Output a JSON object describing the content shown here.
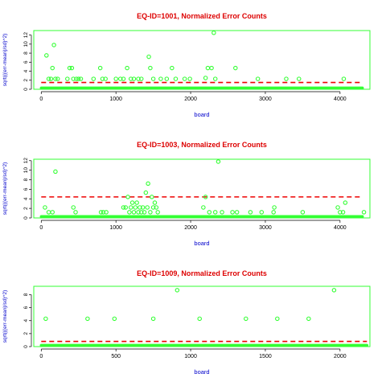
{
  "chart_data": [
    {
      "type": "scatter",
      "title": "EQ-ID=1001, Normalized Error Counts",
      "xlabel": "board",
      "ylabel": "sqrt(((err-mean)/sd)^2)",
      "xlim": [
        -100,
        4400
      ],
      "ylim": [
        0,
        13
      ],
      "xticks": [
        0,
        1000,
        2000,
        3000,
        4000
      ],
      "yticks": [
        0,
        2,
        4,
        6,
        8,
        10,
        12
      ],
      "threshold": 1.5,
      "baseline": {
        "from": 0,
        "to": 4300,
        "value": 0.3
      },
      "points": [
        [
          70,
          7.5
        ],
        [
          100,
          2.3
        ],
        [
          130,
          2.3
        ],
        [
          150,
          4.7
        ],
        [
          170,
          9.8
        ],
        [
          190,
          2.3
        ],
        [
          220,
          2.3
        ],
        [
          350,
          2.3
        ],
        [
          380,
          4.7
        ],
        [
          410,
          4.7
        ],
        [
          430,
          2.3
        ],
        [
          470,
          2.3
        ],
        [
          500,
          2.3
        ],
        [
          530,
          2.3
        ],
        [
          700,
          2.3
        ],
        [
          790,
          4.7
        ],
        [
          820,
          2.3
        ],
        [
          860,
          2.3
        ],
        [
          1000,
          2.3
        ],
        [
          1060,
          2.3
        ],
        [
          1100,
          2.3
        ],
        [
          1150,
          4.7
        ],
        [
          1200,
          2.3
        ],
        [
          1240,
          2.3
        ],
        [
          1300,
          2.3
        ],
        [
          1340,
          2.3
        ],
        [
          1440,
          7.2
        ],
        [
          1460,
          4.7
        ],
        [
          1500,
          2.3
        ],
        [
          1600,
          2.3
        ],
        [
          1680,
          2.3
        ],
        [
          1750,
          4.7
        ],
        [
          1800,
          2.3
        ],
        [
          1920,
          2.3
        ],
        [
          1990,
          2.3
        ],
        [
          2200,
          2.5
        ],
        [
          2230,
          4.7
        ],
        [
          2280,
          4.7
        ],
        [
          2310,
          12.5
        ],
        [
          2330,
          2.3
        ],
        [
          2600,
          4.7
        ],
        [
          2900,
          2.3
        ],
        [
          3280,
          2.3
        ],
        [
          3450,
          2.3
        ],
        [
          4050,
          2.3
        ]
      ]
    },
    {
      "type": "scatter",
      "title": "EQ-ID=1003, Normalized Error Counts",
      "xlabel": "board",
      "ylabel": "sqrt(((err-mean)/sd)^2)",
      "xlim": [
        -100,
        4400
      ],
      "ylim": [
        0,
        12.3
      ],
      "xticks": [
        0,
        1000,
        2000,
        3000,
        4000
      ],
      "yticks": [
        0,
        2,
        4,
        6,
        8,
        10,
        12
      ],
      "threshold": 4.4,
      "baseline": {
        "from": 0,
        "to": 4300,
        "value": 0.3
      },
      "points": [
        [
          50,
          2.2
        ],
        [
          100,
          1.2
        ],
        [
          150,
          1.2
        ],
        [
          190,
          9.7
        ],
        [
          430,
          2.2
        ],
        [
          460,
          1.2
        ],
        [
          800,
          1.2
        ],
        [
          830,
          1.2
        ],
        [
          870,
          1.2
        ],
        [
          1100,
          2.2
        ],
        [
          1130,
          2.2
        ],
        [
          1160,
          4.4
        ],
        [
          1180,
          1.2
        ],
        [
          1200,
          2.2
        ],
        [
          1220,
          3.2
        ],
        [
          1240,
          1.2
        ],
        [
          1260,
          2.2
        ],
        [
          1280,
          3.2
        ],
        [
          1300,
          1.2
        ],
        [
          1320,
          2.2
        ],
        [
          1340,
          1.2
        ],
        [
          1360,
          2.2
        ],
        [
          1380,
          1.2
        ],
        [
          1400,
          5.3
        ],
        [
          1420,
          2.2
        ],
        [
          1430,
          7.2
        ],
        [
          1460,
          1.2
        ],
        [
          1480,
          4.4
        ],
        [
          1500,
          2.2
        ],
        [
          1520,
          3.2
        ],
        [
          1540,
          2.2
        ],
        [
          1560,
          1.2
        ],
        [
          2170,
          2.2
        ],
        [
          2200,
          4.4
        ],
        [
          2250,
          1.2
        ],
        [
          2330,
          1.2
        ],
        [
          2370,
          11.8
        ],
        [
          2420,
          1.2
        ],
        [
          2560,
          1.2
        ],
        [
          2620,
          1.2
        ],
        [
          2800,
          1.2
        ],
        [
          2950,
          1.2
        ],
        [
          3110,
          1.2
        ],
        [
          3120,
          2.2
        ],
        [
          3500,
          1.2
        ],
        [
          3970,
          2.2
        ],
        [
          4000,
          1.2
        ],
        [
          4040,
          1.2
        ],
        [
          4070,
          3.2
        ],
        [
          4320,
          1.2
        ]
      ]
    },
    {
      "type": "scatter",
      "title": "EQ-ID=1009, Normalized Error Counts",
      "xlabel": "board",
      "ylabel": "sqrt(((err-mean)/sd)^2)",
      "xlim": [
        -50,
        2200
      ],
      "ylim": [
        0,
        9.3
      ],
      "xticks": [
        0,
        500,
        1000,
        1500,
        2000
      ],
      "yticks": [
        0,
        2,
        4,
        6,
        8
      ],
      "threshold": 0.8,
      "baseline": {
        "from": 0,
        "to": 2180,
        "value": 0.2
      },
      "points": [
        [
          30,
          4.3
        ],
        [
          310,
          4.3
        ],
        [
          490,
          4.3
        ],
        [
          750,
          4.3
        ],
        [
          910,
          8.7
        ],
        [
          1060,
          4.3
        ],
        [
          1370,
          4.3
        ],
        [
          1580,
          4.3
        ],
        [
          1790,
          4.3
        ],
        [
          1960,
          8.7
        ]
      ]
    }
  ],
  "colors": {
    "title": "#dd0000",
    "xlabel": "#0000cc",
    "ylabel": "#0000cc",
    "frame": "#33ff33",
    "points": "#33ff33",
    "threshold": "#ee0000",
    "axis": "#000000"
  }
}
